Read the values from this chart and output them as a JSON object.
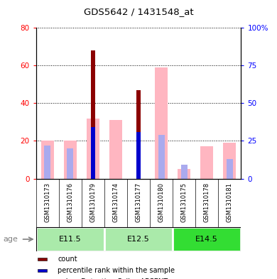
{
  "title": "GDS5642 / 1431548_at",
  "samples": [
    "GSM1310173",
    "GSM1310176",
    "GSM1310179",
    "GSM1310174",
    "GSM1310177",
    "GSM1310180",
    "GSM1310175",
    "GSM1310178",
    "GSM1310181"
  ],
  "age_groups": [
    {
      "label": "E11.5",
      "start": 0,
      "end": 3,
      "color": "#AAEAAA"
    },
    {
      "label": "E12.5",
      "start": 3,
      "end": 6,
      "color": "#AAEAAA"
    },
    {
      "label": "E14.5",
      "start": 6,
      "end": 9,
      "color": "#33DD33"
    }
  ],
  "count_values": [
    0,
    0,
    68,
    0,
    47,
    0,
    0,
    0,
    0
  ],
  "percentile_rank_values": [
    0,
    0,
    34,
    0,
    31,
    0,
    0,
    0,
    0
  ],
  "absent_value": [
    20,
    20,
    32,
    31,
    0,
    59,
    5,
    17,
    19
  ],
  "absent_rank": [
    22,
    20,
    0,
    0,
    0,
    29,
    9,
    0,
    13
  ],
  "ylim_left": [
    0,
    80
  ],
  "ylim_right": [
    0,
    100
  ],
  "yticks_left": [
    0,
    20,
    40,
    60,
    80
  ],
  "yticks_right": [
    0,
    25,
    50,
    75,
    100
  ],
  "yticklabels_right": [
    "0",
    "25",
    "50",
    "75",
    "100%"
  ],
  "color_count": "#8B0000",
  "color_percentile": "#0000CC",
  "color_absent_value": "#FFB6C1",
  "color_absent_rank": "#AAAAEE",
  "bg_label": "#C8C8C8"
}
